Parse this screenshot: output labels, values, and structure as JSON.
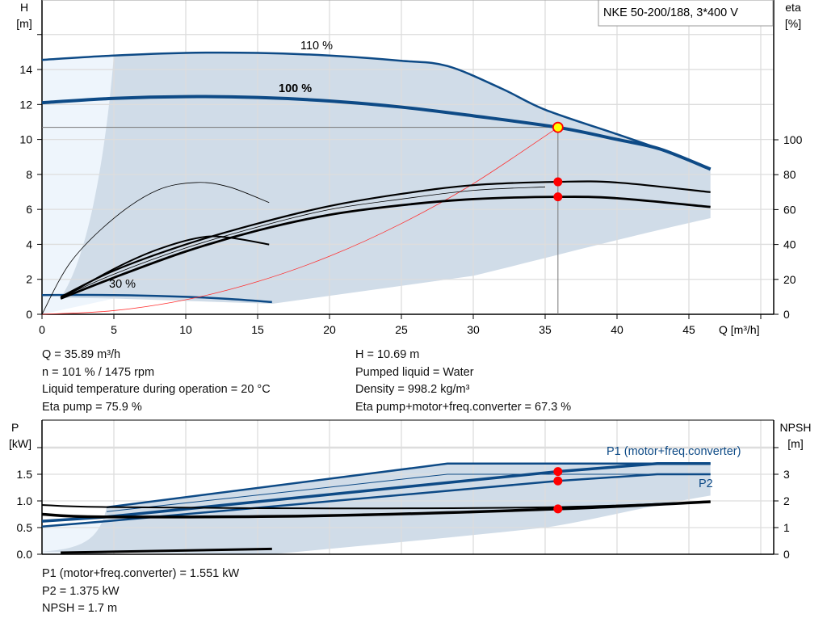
{
  "chart_data": [
    {
      "type": "line",
      "title": "NKE 50-200/188, 3*400 V",
      "xlabel": "Q [m³/h]",
      "ylabel": "H\n[m]",
      "y2label": "eta\n[%]",
      "xlim": [
        0,
        50.9
      ],
      "ylim": [
        0,
        18
      ],
      "y2lim": [
        0,
        180
      ],
      "xticks": [
        0,
        5,
        10,
        15,
        20,
        25,
        30,
        35,
        40,
        45
      ],
      "yticks": [
        0,
        2,
        4,
        6,
        8,
        10,
        12,
        14
      ],
      "y2ticks": [
        0,
        20,
        40,
        60,
        80,
        100
      ],
      "grid": true,
      "curve_labels": {
        "c110": "110 %",
        "c100": "100 %",
        "c30": "30 %"
      },
      "series": [
        {
          "id": "h110",
          "axis": "H",
          "color": "#0d4a86",
          "points": [
            [
              0,
              14.55
            ],
            [
              5,
              14.8
            ],
            [
              10,
              14.95
            ],
            [
              15,
              14.95
            ],
            [
              20,
              14.8
            ],
            [
              25,
              14.5
            ],
            [
              28.2,
              14.2
            ],
            [
              32,
              12.9
            ],
            [
              35,
              11.7
            ],
            [
              40,
              10.3
            ],
            [
              42.8,
              9.5
            ],
            [
              46.5,
              8.3
            ]
          ]
        },
        {
          "id": "h100",
          "axis": "H",
          "color": "#0d4a86",
          "points": [
            [
              0,
              12.1
            ],
            [
              5,
              12.35
            ],
            [
              10,
              12.45
            ],
            [
              15,
              12.4
            ],
            [
              20,
              12.2
            ],
            [
              25,
              11.85
            ],
            [
              30,
              11.35
            ],
            [
              35.89,
              10.69
            ],
            [
              40,
              10.0
            ],
            [
              43,
              9.45
            ],
            [
              46.5,
              8.3
            ]
          ]
        },
        {
          "id": "h30",
          "axis": "H",
          "color": "#0d4a86",
          "points": [
            [
              0,
              1.1
            ],
            [
              5,
              1.1
            ],
            [
              10,
              1.0
            ],
            [
              13,
              0.88
            ],
            [
              16,
              0.7
            ]
          ]
        },
        {
          "id": "system",
          "axis": "H",
          "color": "#ff3030",
          "points": [
            [
              0,
              0
            ],
            [
              5,
              0.21
            ],
            [
              10,
              0.83
            ],
            [
              15,
              1.87
            ],
            [
              20,
              3.32
            ],
            [
              25,
              5.19
            ],
            [
              30,
              7.47
            ],
            [
              35.89,
              10.69
            ]
          ]
        },
        {
          "id": "eta_pump",
          "axis": "eta",
          "color": "#000000",
          "points": [
            [
              1.3,
              10
            ],
            [
              5,
              25
            ],
            [
              10,
              40
            ],
            [
              15,
              52
            ],
            [
              20,
              62
            ],
            [
              25,
              69
            ],
            [
              30,
              74
            ],
            [
              35.89,
              75.9
            ],
            [
              40,
              75.5
            ],
            [
              46.5,
              70
            ]
          ]
        },
        {
          "id": "eta_total",
          "axis": "eta",
          "color": "#000000",
          "points": [
            [
              1.3,
              9
            ],
            [
              5,
              21
            ],
            [
              10,
              36
            ],
            [
              15,
              48
            ],
            [
              20,
              57
            ],
            [
              25,
              62.5
            ],
            [
              30,
              66
            ],
            [
              35.89,
              67.3
            ],
            [
              40,
              66.5
            ],
            [
              46.5,
              61.5
            ]
          ]
        },
        {
          "id": "eta30_pump",
          "axis": "eta",
          "color": "#000000",
          "points": [
            [
              0,
              0
            ],
            [
              2,
              30
            ],
            [
              5,
              55
            ],
            [
              8,
              71
            ],
            [
              10.7,
              75.5
            ],
            [
              13,
              73
            ],
            [
              15.8,
              64
            ]
          ]
        },
        {
          "id": "eta30_total",
          "axis": "eta",
          "color": "#000000",
          "points": [
            [
              1.3,
              9
            ],
            [
              5,
              26
            ],
            [
              8,
              37
            ],
            [
              11,
              44
            ],
            [
              13,
              44
            ],
            [
              15.8,
              40
            ]
          ]
        }
      ],
      "operating_point": {
        "Q": 35.89,
        "H": 10.69,
        "eta_pump": 75.9,
        "eta_total": 67.3
      }
    },
    {
      "type": "line",
      "xlabel": "",
      "ylabel": "P\n[kW]",
      "y2label": "NPSH\n[m]",
      "ylim": [
        0,
        2.5
      ],
      "y2lim": [
        0,
        5
      ],
      "yticks": [
        0.0,
        0.5,
        1.0,
        1.5
      ],
      "y2ticks": [
        0,
        1,
        2,
        3
      ],
      "series_labels": {
        "p1": "P1 (motor+freq.converter)",
        "p2": "P2"
      },
      "series": [
        {
          "id": "p1_110",
          "axis": "P",
          "color": "#0d4a86",
          "points": [
            [
              4.5,
              0.88
            ],
            [
              28.2,
              1.7
            ],
            [
              46.5,
              1.7
            ]
          ]
        },
        {
          "id": "p2_110",
          "axis": "P",
          "color": "#0d4a86",
          "points": [
            [
              4.5,
              0.8
            ],
            [
              28.2,
              1.5
            ],
            [
              46.5,
              1.5
            ]
          ]
        },
        {
          "id": "p1",
          "axis": "P",
          "color": "#0d4a86",
          "points": [
            [
              0,
              0.62
            ],
            [
              4.5,
              0.7
            ],
            [
              35.89,
              1.551
            ],
            [
              42.8,
              1.7
            ],
            [
              46.5,
              1.7
            ]
          ]
        },
        {
          "id": "p2",
          "axis": "P",
          "color": "#0d4a86",
          "points": [
            [
              0,
              0.52
            ],
            [
              4.5,
              0.62
            ],
            [
              35.89,
              1.375
            ],
            [
              42.8,
              1.5
            ],
            [
              46.5,
              1.5
            ]
          ]
        },
        {
          "id": "npsh_110",
          "axis": "NPSH",
          "color": "#000000",
          "points": [
            [
              0,
              1.85
            ],
            [
              4.5,
              1.77
            ],
            [
              20,
              1.72
            ],
            [
              35.89,
              1.77
            ],
            [
              46.5,
              1.97
            ]
          ]
        },
        {
          "id": "npsh",
          "axis": "NPSH",
          "color": "#000000",
          "points": [
            [
              0,
              1.5
            ],
            [
              4.5,
              1.4
            ],
            [
              20,
              1.45
            ],
            [
              35.89,
              1.7
            ],
            [
              46.5,
              1.97
            ]
          ]
        },
        {
          "id": "p_30",
          "axis": "P",
          "color": "#000000",
          "points": [
            [
              1.3,
              0.03
            ],
            [
              16,
              0.1
            ]
          ]
        }
      ],
      "operating_point": {
        "Q": 35.89,
        "P1": 1.551,
        "P2": 1.375,
        "NPSH": 1.7
      }
    }
  ],
  "info": {
    "left": [
      "Q = 35.89 m³/h",
      "n = 101 % / 1475 rpm",
      "Liquid temperature during operation = 20 °C",
      "Eta pump = 75.9 %"
    ],
    "right": [
      "H = 10.69 m",
      "Pumped liquid = Water",
      "Density = 998.2 kg/m³",
      "Eta pump+motor+freq.converter = 67.3 %"
    ],
    "bottom": [
      "P1 (motor+freq.converter) = 1.551 kW",
      "P2 = 1.375 kW",
      "NPSH = 1.7 m"
    ]
  },
  "colors": {
    "region": "#d0dce8",
    "region_light": "#eef5fc",
    "curve": "#0d4a86",
    "op_point": "#ff0000",
    "op_fill": "#ffff00",
    "grid": "#dddddd"
  }
}
